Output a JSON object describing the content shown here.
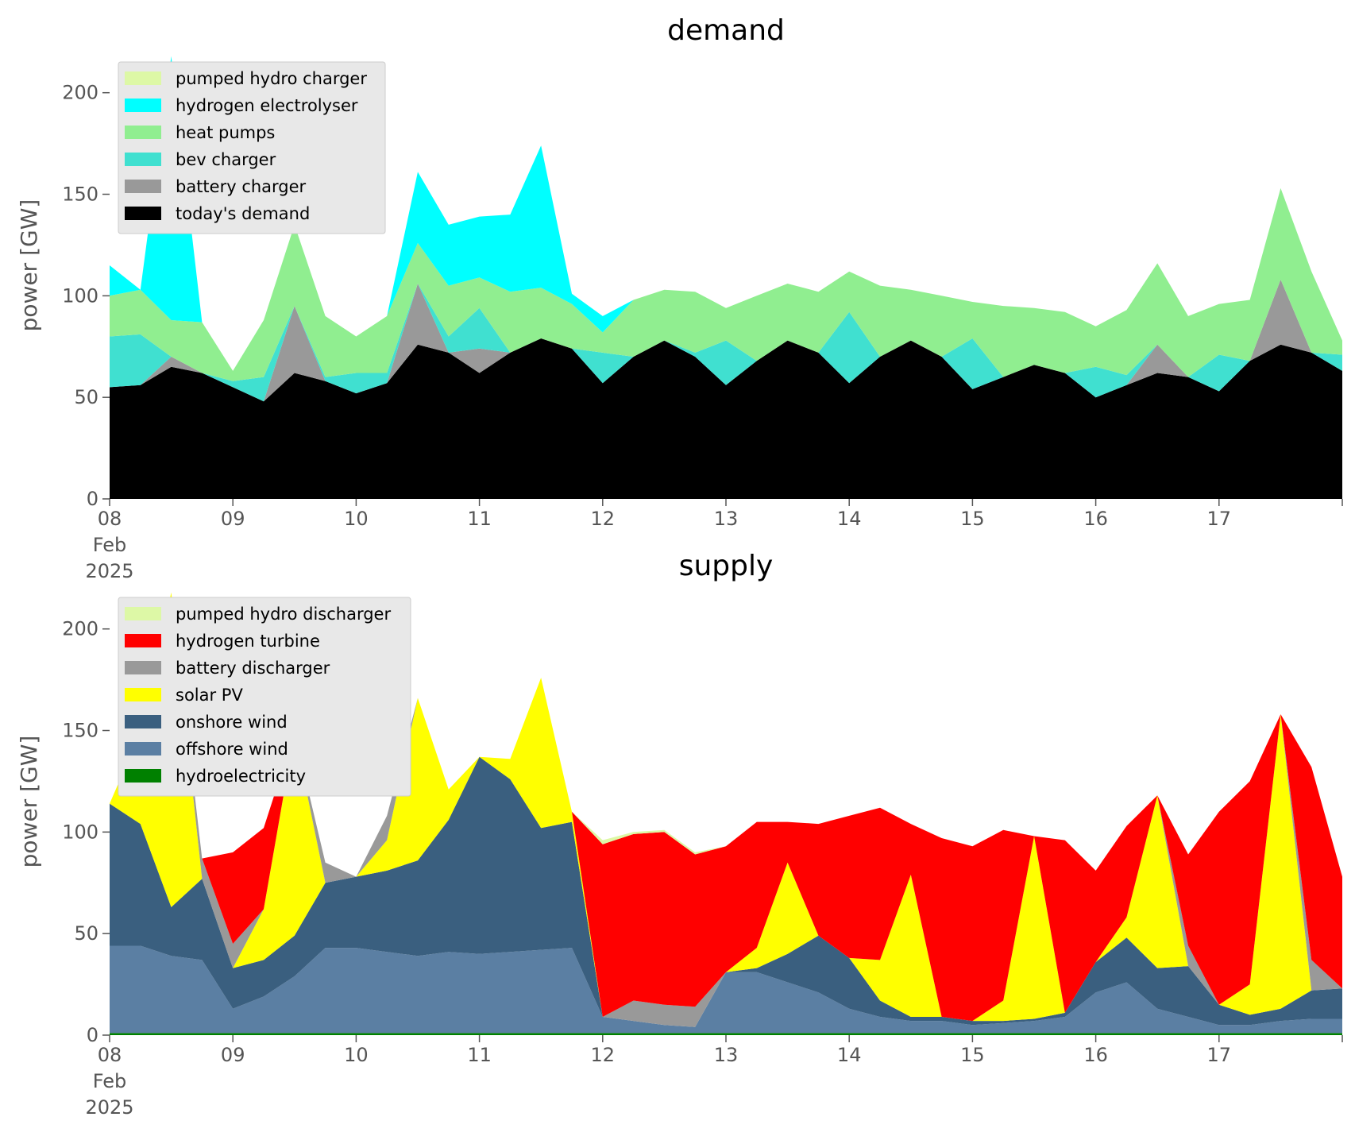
{
  "chart_data": [
    {
      "type": "area",
      "stacked": true,
      "title": "demand",
      "ylabel": "power [GW]",
      "ylim": [
        0,
        230
      ],
      "yticks": [
        0,
        50,
        100,
        150,
        200
      ],
      "xlim": [
        8,
        18
      ],
      "xticks": [
        {
          "x": 8,
          "lines": [
            "08",
            "Feb",
            "2025"
          ]
        },
        {
          "x": 9,
          "lines": [
            "09"
          ]
        },
        {
          "x": 10,
          "lines": [
            "10"
          ]
        },
        {
          "x": 11,
          "lines": [
            "11"
          ]
        },
        {
          "x": 12,
          "lines": [
            "12"
          ]
        },
        {
          "x": 13,
          "lines": [
            "13"
          ]
        },
        {
          "x": 14,
          "lines": [
            "14"
          ]
        },
        {
          "x": 15,
          "lines": [
            "15"
          ]
        },
        {
          "x": 16,
          "lines": [
            "16"
          ]
        },
        {
          "x": 17,
          "lines": [
            "17"
          ]
        }
      ],
      "grid": false,
      "legend_position": "top-left",
      "x": [
        8.0,
        8.25,
        8.5,
        8.75,
        9.0,
        9.25,
        9.5,
        9.75,
        10.0,
        10.25,
        10.5,
        10.75,
        11.0,
        11.25,
        11.5,
        11.75,
        12.0,
        12.25,
        12.5,
        12.75,
        13.0,
        13.25,
        13.5,
        13.75,
        14.0,
        14.25,
        14.5,
        14.75,
        15.0,
        15.25,
        15.5,
        15.75,
        16.0,
        16.25,
        16.5,
        16.75,
        17.0,
        17.25,
        17.5,
        17.75,
        18.0
      ],
      "series": [
        {
          "name": "today's demand",
          "color": "#000000",
          "values": [
            55,
            56,
            65,
            62,
            55,
            48,
            62,
            58,
            52,
            57,
            76,
            72,
            62,
            72,
            79,
            74,
            57,
            70,
            78,
            70,
            56,
            68,
            78,
            72,
            57,
            70,
            78,
            70,
            54,
            60,
            66,
            62,
            50,
            56,
            62,
            60,
            53,
            68,
            76,
            72,
            63
          ]
        },
        {
          "name": "battery charger",
          "color": "#999999",
          "values": [
            0,
            0,
            5,
            0,
            0,
            0,
            33,
            0,
            0,
            0,
            30,
            0,
            12,
            0,
            0,
            0,
            0,
            0,
            0,
            0,
            0,
            0,
            0,
            0,
            0,
            0,
            0,
            0,
            0,
            0,
            0,
            0,
            0,
            0,
            14,
            0,
            0,
            0,
            32,
            0,
            0
          ]
        },
        {
          "name": "bev charger",
          "color": "#40e0d0",
          "values": [
            25,
            25,
            0,
            0,
            3,
            12,
            0,
            2,
            10,
            5,
            0,
            8,
            20,
            0,
            0,
            0,
            15,
            0,
            0,
            2,
            22,
            0,
            0,
            0,
            35,
            0,
            0,
            0,
            25,
            0,
            0,
            0,
            15,
            5,
            0,
            0,
            18,
            0,
            0,
            0,
            8
          ]
        },
        {
          "name": "heat pumps",
          "color": "#90ee90",
          "values": [
            20,
            22,
            18,
            25,
            5,
            28,
            40,
            30,
            18,
            28,
            20,
            25,
            15,
            30,
            25,
            22,
            10,
            28,
            25,
            30,
            16,
            32,
            28,
            30,
            20,
            35,
            25,
            30,
            18,
            35,
            28,
            30,
            20,
            32,
            40,
            30,
            25,
            30,
            45,
            40,
            7
          ]
        },
        {
          "name": "hydrogen electrolyser",
          "color": "#00ffff",
          "values": [
            15,
            0,
            130,
            0,
            0,
            0,
            0,
            0,
            0,
            0,
            35,
            30,
            30,
            38,
            70,
            5,
            8,
            0,
            0,
            0,
            0,
            0,
            0,
            0,
            0,
            0,
            0,
            0,
            0,
            0,
            0,
            0,
            0,
            0,
            0,
            0,
            0,
            0,
            0,
            0,
            0
          ]
        },
        {
          "name": "pumped hydro charger",
          "color": "#ddf8a6",
          "values": [
            0,
            0,
            0,
            0,
            0,
            0,
            0,
            0,
            0,
            0,
            0,
            0,
            0,
            0,
            0,
            0,
            0,
            0,
            0,
            0,
            0,
            0,
            0,
            0,
            0,
            0,
            0,
            0,
            0,
            0,
            0,
            0,
            0,
            0,
            0,
            0,
            0,
            0,
            0,
            0,
            0
          ]
        }
      ],
      "legend_order": [
        "pumped hydro charger",
        "hydrogen electrolyser",
        "heat pumps",
        "bev charger",
        "battery charger",
        "today's demand"
      ]
    },
    {
      "type": "area",
      "stacked": true,
      "title": "supply",
      "ylabel": "power [GW]",
      "ylim": [
        0,
        230
      ],
      "yticks": [
        0,
        50,
        100,
        150,
        200
      ],
      "xlim": [
        8,
        18
      ],
      "xticks": [
        {
          "x": 8,
          "lines": [
            "08",
            "Feb",
            "2025"
          ]
        },
        {
          "x": 9,
          "lines": [
            "09"
          ]
        },
        {
          "x": 10,
          "lines": [
            "10"
          ]
        },
        {
          "x": 11,
          "lines": [
            "11"
          ]
        },
        {
          "x": 12,
          "lines": [
            "12"
          ]
        },
        {
          "x": 13,
          "lines": [
            "13"
          ]
        },
        {
          "x": 14,
          "lines": [
            "14"
          ]
        },
        {
          "x": 15,
          "lines": [
            "15"
          ]
        },
        {
          "x": 16,
          "lines": [
            "16"
          ]
        },
        {
          "x": 17,
          "lines": [
            "17"
          ]
        }
      ],
      "grid": false,
      "legend_position": "top-left",
      "x": [
        8.0,
        8.25,
        8.5,
        8.75,
        9.0,
        9.25,
        9.5,
        9.75,
        10.0,
        10.25,
        10.5,
        10.75,
        11.0,
        11.25,
        11.5,
        11.75,
        12.0,
        12.25,
        12.5,
        12.75,
        13.0,
        13.25,
        13.5,
        13.75,
        14.0,
        14.25,
        14.5,
        14.75,
        15.0,
        15.25,
        15.5,
        15.75,
        16.0,
        16.25,
        16.5,
        16.75,
        17.0,
        17.25,
        17.5,
        17.75,
        18.0
      ],
      "series": [
        {
          "name": "hydroelectricity",
          "color": "#008000",
          "values": [
            1,
            1,
            1,
            1,
            1,
            1,
            1,
            1,
            1,
            1,
            1,
            1,
            1,
            1,
            1,
            1,
            1,
            1,
            1,
            1,
            1,
            1,
            1,
            1,
            1,
            1,
            1,
            1,
            1,
            1,
            1,
            1,
            1,
            1,
            1,
            1,
            1,
            1,
            1,
            1,
            1
          ]
        },
        {
          "name": "offshore wind",
          "color": "#5b7fa3",
          "values": [
            43,
            43,
            38,
            36,
            12,
            18,
            28,
            42,
            42,
            40,
            38,
            40,
            39,
            40,
            41,
            42,
            8,
            6,
            4,
            3,
            30,
            30,
            25,
            20,
            12,
            8,
            6,
            6,
            4,
            5,
            6,
            8,
            20,
            25,
            12,
            8,
            4,
            4,
            6,
            7,
            7
          ]
        },
        {
          "name": "onshore wind",
          "color": "#3a5f7f",
          "values": [
            70,
            60,
            24,
            40,
            20,
            18,
            20,
            32,
            35,
            40,
            47,
            65,
            97,
            85,
            60,
            62,
            0,
            0,
            0,
            0,
            0,
            2,
            14,
            28,
            25,
            8,
            2,
            2,
            2,
            1,
            1,
            2,
            15,
            22,
            20,
            25,
            10,
            5,
            6,
            14,
            15
          ]
        },
        {
          "name": "solar PV",
          "color": "#ffff00",
          "values": [
            0,
            45,
            155,
            0,
            0,
            25,
            100,
            0,
            0,
            15,
            80,
            15,
            0,
            10,
            74,
            5,
            0,
            0,
            0,
            0,
            0,
            10,
            45,
            0,
            0,
            20,
            70,
            0,
            0,
            10,
            90,
            0,
            0,
            10,
            85,
            0,
            0,
            15,
            145,
            0,
            0
          ]
        },
        {
          "name": "battery discharger",
          "color": "#999999",
          "values": [
            0,
            0,
            0,
            10,
            12,
            0,
            0,
            10,
            0,
            12,
            0,
            0,
            0,
            0,
            0,
            0,
            0,
            10,
            10,
            10,
            0,
            0,
            0,
            0,
            0,
            0,
            0,
            0,
            0,
            0,
            0,
            0,
            0,
            0,
            0,
            10,
            0,
            0,
            0,
            15,
            0
          ]
        },
        {
          "name": "hydrogen turbine",
          "color": "#ff0000",
          "values": [
            0,
            0,
            0,
            0,
            45,
            40,
            0,
            0,
            0,
            0,
            0,
            0,
            0,
            0,
            0,
            0,
            85,
            82,
            85,
            75,
            62,
            62,
            20,
            55,
            70,
            75,
            25,
            88,
            86,
            84,
            0,
            85,
            45,
            45,
            0,
            45,
            95,
            100,
            0,
            95,
            55
          ]
        },
        {
          "name": "pumped hydro discharger",
          "color": "#ddf8a6",
          "values": [
            0,
            0,
            0,
            0,
            0,
            0,
            0,
            0,
            0,
            0,
            0,
            0,
            0,
            0,
            0,
            0,
            2,
            1,
            1,
            1,
            0,
            0,
            0,
            0,
            0,
            0,
            0,
            0,
            0,
            0,
            0,
            0,
            0,
            0,
            0,
            0,
            0,
            0,
            0,
            0,
            0
          ]
        }
      ],
      "legend_order": [
        "pumped hydro discharger",
        "hydrogen turbine",
        "battery discharger",
        "solar PV",
        "onshore wind",
        "offshore wind",
        "hydroelectricity"
      ]
    }
  ]
}
